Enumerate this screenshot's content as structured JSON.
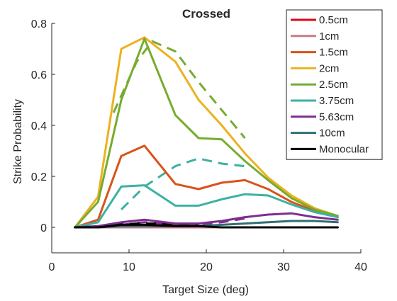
{
  "chart_data": {
    "type": "line",
    "title": "Crossed",
    "xlabel": "Target Size (deg)",
    "ylabel": "Strike Probability",
    "xlim": [
      0,
      40
    ],
    "ylim": [
      -0.1,
      0.8
    ],
    "xticks": [
      0,
      10,
      20,
      30,
      40
    ],
    "yticks": [
      0,
      0.2,
      0.4,
      0.6,
      0.8
    ],
    "ytick_labels": [
      "0",
      "0.2",
      "0.4",
      "0.6",
      "0.8"
    ],
    "grid": false,
    "legend_position": "top-right",
    "series": [
      {
        "name": "0.5cm",
        "color": "#e0001a",
        "x": [
          3,
          6,
          9,
          12,
          16,
          19,
          22,
          25,
          28,
          31,
          34,
          37
        ],
        "y": [
          0,
          0,
          0,
          0,
          0,
          0,
          0,
          0,
          0,
          0,
          0,
          0
        ]
      },
      {
        "name": "1cm",
        "color": "#cc7a85",
        "x": [
          3,
          6,
          9,
          12,
          16,
          19,
          22,
          25,
          28,
          31,
          34,
          37
        ],
        "y": [
          0,
          0,
          0,
          0,
          0,
          0,
          0,
          0,
          0,
          0,
          0,
          0
        ]
      },
      {
        "name": "1.5cm",
        "color": "#d95319",
        "x": [
          3,
          6,
          9,
          12,
          16,
          19,
          22,
          25,
          28,
          31,
          34,
          37
        ],
        "y": [
          0,
          0.03,
          0.28,
          0.32,
          0.17,
          0.15,
          0.175,
          0.185,
          0.15,
          0.1,
          0.065,
          0.04
        ]
      },
      {
        "name": "2cm",
        "color": "#edb120",
        "x": [
          3,
          6,
          9,
          12,
          16,
          19,
          22,
          25,
          28,
          31,
          34,
          37
        ],
        "y": [
          0,
          0.12,
          0.7,
          0.745,
          0.65,
          0.5,
          0.4,
          0.29,
          0.195,
          0.125,
          0.075,
          0.045
        ]
      },
      {
        "name": "2.5cm",
        "color": "#77ac30",
        "x": [
          3,
          6,
          9,
          12,
          16,
          19,
          22,
          25,
          28,
          31,
          34,
          37
        ],
        "y": [
          0,
          0.1,
          0.5,
          0.74,
          0.44,
          0.35,
          0.345,
          0.26,
          0.185,
          0.115,
          0.07,
          0.045
        ]
      },
      {
        "name": "3.75cm",
        "color": "#3bb2a2",
        "x": [
          3,
          6,
          9,
          12,
          16,
          19,
          22,
          25,
          28,
          31,
          34,
          37
        ],
        "y": [
          0,
          0.02,
          0.16,
          0.165,
          0.085,
          0.085,
          0.11,
          0.13,
          0.125,
          0.09,
          0.06,
          0.04
        ]
      },
      {
        "name": "5.63cm",
        "color": "#7e2f8e",
        "x": [
          3,
          6,
          9,
          12,
          16,
          19,
          22,
          25,
          28,
          31,
          34,
          37
        ],
        "y": [
          0,
          0.005,
          0.02,
          0.03,
          0.015,
          0.015,
          0.025,
          0.04,
          0.05,
          0.055,
          0.04,
          0.03
        ]
      },
      {
        "name": "10cm",
        "color": "#2f6f72",
        "x": [
          3,
          6,
          9,
          12,
          16,
          19,
          22,
          25,
          28,
          31,
          34,
          37
        ],
        "y": [
          0,
          0,
          0.005,
          0.005,
          0.005,
          0.005,
          0.01,
          0.015,
          0.02,
          0.025,
          0.025,
          0.02
        ]
      },
      {
        "name": "Monocular",
        "color": "#000000",
        "x": [
          3,
          6,
          9,
          12,
          16,
          19,
          22,
          25,
          28,
          31,
          34,
          37
        ],
        "y": [
          0,
          0,
          0.01,
          0.01,
          0.005,
          0.005,
          0,
          0,
          0,
          0,
          0,
          0
        ]
      }
    ],
    "dashed_series": [
      {
        "color": "#77ac30",
        "x": [
          8,
          11,
          13,
          16,
          19,
          22,
          25
        ],
        "y": [
          0.45,
          0.65,
          0.73,
          0.69,
          0.57,
          0.46,
          0.35
        ]
      },
      {
        "color": "#3bb2a2",
        "x": [
          9,
          12,
          16,
          19,
          22,
          25
        ],
        "y": [
          0.07,
          0.16,
          0.24,
          0.27,
          0.25,
          0.24
        ]
      },
      {
        "color": "#7e2f8e",
        "x": [
          9,
          12,
          16,
          19,
          22,
          25
        ],
        "y": [
          0.01,
          0.02,
          0.01,
          0.01,
          0.02,
          0.035
        ]
      },
      {
        "color": "#000000",
        "x": [
          8,
          11,
          13,
          16,
          19
        ],
        "y": [
          0.01,
          0.015,
          0.015,
          0.01,
          0.01
        ]
      }
    ]
  }
}
